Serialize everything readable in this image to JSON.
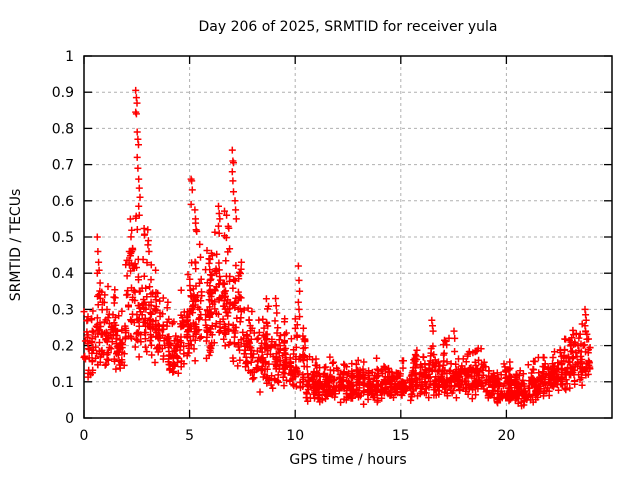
{
  "window": {
    "background": "#ffffff"
  },
  "chart_data": {
    "type": "scatter",
    "title": "Day 206 of 2025, SRMTID for receiver yula",
    "xlabel": "GPS time / hours",
    "ylabel": "SRMTID / TECUs",
    "xlim": [
      0,
      25
    ],
    "ylim": [
      0,
      1
    ],
    "xticks": [
      0,
      5,
      10,
      15,
      20
    ],
    "yticks": [
      0,
      0.1,
      0.2,
      0.3,
      0.4,
      0.5,
      0.6,
      0.7,
      0.8,
      0.9,
      1
    ],
    "grid": true,
    "grid_style": "dashed",
    "grid_color": "#b0b0b0",
    "border_color": "#000000",
    "legend": "none",
    "marker": "plus-cross",
    "marker_color": "#ff0000",
    "series": [
      {
        "name": "SRMTID",
        "pattern_note": "Dense red + cloud. Active morning: bands 0.1-0.5 rising to peaks near 2.5h (max 0.905), 5.1h (0.66), 7.0h (0.74); spike 0.42 near 10.2h; quiet band 0.02-0.2 from 10.5h to 22h with minor spikes near 16.5h (0.27); rises again to ~0.30 by ~23.8h; data ends near 24h.",
        "density_bins_format": [
          "t_start_h",
          "t_end_h",
          "y_min_TECU",
          "y_max_TECU",
          "n_points"
        ],
        "density_bins": [
          [
            0.0,
            0.5,
            0.09,
            0.3,
            36
          ],
          [
            0.5,
            1.0,
            0.12,
            0.42,
            42
          ],
          [
            1.0,
            1.5,
            0.12,
            0.38,
            42
          ],
          [
            1.5,
            2.0,
            0.11,
            0.3,
            38
          ],
          [
            2.0,
            2.5,
            0.14,
            0.62,
            48
          ],
          [
            2.5,
            3.0,
            0.15,
            0.55,
            48
          ],
          [
            3.0,
            3.5,
            0.14,
            0.46,
            42
          ],
          [
            3.5,
            4.0,
            0.12,
            0.36,
            40
          ],
          [
            4.0,
            4.5,
            0.1,
            0.3,
            38
          ],
          [
            4.5,
            5.0,
            0.11,
            0.42,
            42
          ],
          [
            5.0,
            5.5,
            0.13,
            0.55,
            46
          ],
          [
            5.5,
            6.0,
            0.14,
            0.5,
            46
          ],
          [
            6.0,
            6.5,
            0.15,
            0.55,
            48
          ],
          [
            6.5,
            7.0,
            0.16,
            0.6,
            48
          ],
          [
            7.0,
            7.5,
            0.12,
            0.52,
            44
          ],
          [
            7.5,
            8.0,
            0.09,
            0.33,
            40
          ],
          [
            8.0,
            8.5,
            0.07,
            0.28,
            40
          ],
          [
            8.5,
            9.0,
            0.06,
            0.33,
            40
          ],
          [
            9.0,
            9.5,
            0.06,
            0.3,
            40
          ],
          [
            9.5,
            10.0,
            0.05,
            0.28,
            40
          ],
          [
            10.0,
            10.5,
            0.06,
            0.3,
            40
          ],
          [
            10.5,
            11.0,
            0.04,
            0.17,
            42
          ],
          [
            11.0,
            11.5,
            0.03,
            0.19,
            42
          ],
          [
            11.5,
            12.0,
            0.04,
            0.17,
            42
          ],
          [
            12.0,
            12.5,
            0.03,
            0.21,
            42
          ],
          [
            12.5,
            13.0,
            0.04,
            0.16,
            42
          ],
          [
            13.0,
            13.5,
            0.03,
            0.19,
            42
          ],
          [
            13.5,
            14.0,
            0.04,
            0.17,
            42
          ],
          [
            14.0,
            14.5,
            0.04,
            0.16,
            42
          ],
          [
            14.5,
            15.0,
            0.05,
            0.17,
            42
          ],
          [
            15.0,
            15.5,
            0.04,
            0.16,
            42
          ],
          [
            15.5,
            16.0,
            0.05,
            0.19,
            42
          ],
          [
            16.0,
            16.5,
            0.05,
            0.24,
            42
          ],
          [
            16.5,
            17.0,
            0.05,
            0.21,
            42
          ],
          [
            17.0,
            17.5,
            0.04,
            0.23,
            42
          ],
          [
            17.5,
            18.0,
            0.05,
            0.19,
            42
          ],
          [
            18.0,
            18.5,
            0.04,
            0.19,
            42
          ],
          [
            18.5,
            19.0,
            0.05,
            0.21,
            42
          ],
          [
            19.0,
            19.5,
            0.04,
            0.17,
            42
          ],
          [
            19.5,
            20.0,
            0.03,
            0.15,
            42
          ],
          [
            20.0,
            20.5,
            0.04,
            0.16,
            42
          ],
          [
            20.5,
            21.0,
            0.02,
            0.14,
            42
          ],
          [
            21.0,
            21.5,
            0.04,
            0.16,
            42
          ],
          [
            21.5,
            22.0,
            0.05,
            0.17,
            42
          ],
          [
            22.0,
            22.5,
            0.06,
            0.2,
            42
          ],
          [
            22.5,
            23.0,
            0.07,
            0.24,
            44
          ],
          [
            23.0,
            23.5,
            0.08,
            0.28,
            44
          ],
          [
            23.5,
            24.0,
            0.08,
            0.26,
            40
          ]
        ],
        "peak_columns_format": [
          "t_h",
          "values_TECU"
        ],
        "peak_columns": [
          [
            0.66,
            [
              0.5,
              0.46,
              0.43,
              0.4
            ]
          ],
          [
            2.48,
            [
              0.905,
              0.885,
              0.87,
              0.845,
              0.84
            ]
          ],
          [
            2.55,
            [
              0.79,
              0.77,
              0.755,
              0.72,
              0.69
            ]
          ],
          [
            2.62,
            [
              0.66,
              0.635,
              0.61,
              0.585,
              0.56
            ]
          ],
          [
            3.05,
            [
              0.52,
              0.49,
              0.46
            ]
          ],
          [
            5.1,
            [
              0.66,
              0.655,
              0.63,
              0.59
            ]
          ],
          [
            5.28,
            [
              0.575,
              0.55,
              0.52
            ]
          ],
          [
            5.95,
            [
              0.44,
              0.41,
              0.38
            ]
          ],
          [
            6.4,
            [
              0.585,
              0.565,
              0.55,
              0.53,
              0.51
            ]
          ],
          [
            7.05,
            [
              0.74,
              0.71,
              0.705,
              0.68,
              0.655,
              0.625
            ]
          ],
          [
            7.18,
            [
              0.6,
              0.575,
              0.55
            ]
          ],
          [
            9.1,
            [
              0.33,
              0.31,
              0.29
            ]
          ],
          [
            10.18,
            [
              0.42,
              0.38,
              0.35,
              0.32,
              0.3,
              0.28
            ]
          ],
          [
            16.5,
            [
              0.27,
              0.255,
              0.24
            ]
          ],
          [
            17.55,
            [
              0.24,
              0.22
            ]
          ],
          [
            23.75,
            [
              0.3,
              0.285,
              0.27,
              0.255,
              0.24
            ]
          ]
        ]
      }
    ]
  }
}
